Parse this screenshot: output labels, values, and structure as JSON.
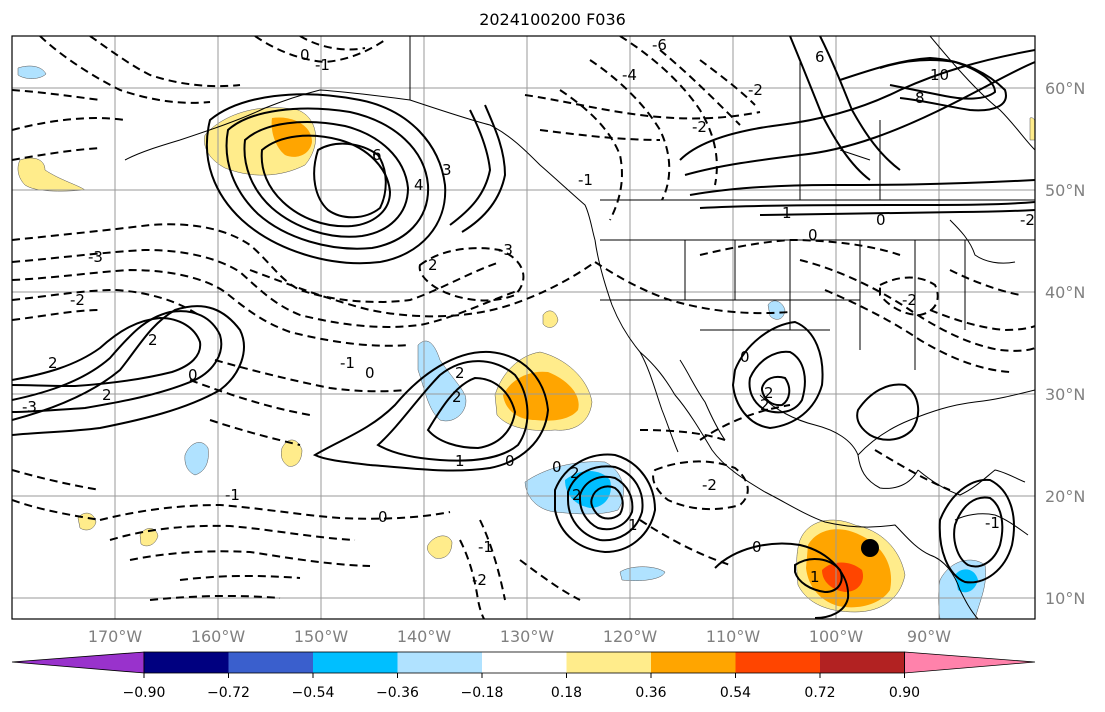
{
  "title": "2024100200 F036",
  "map": {
    "lon_labels": [
      "170°W",
      "160°W",
      "150°W",
      "140°W",
      "130°W",
      "120°W",
      "110°W",
      "100°W",
      "90°W"
    ],
    "lat_labels": [
      "60°N",
      "50°N",
      "40°N",
      "30°N",
      "20°N",
      "10°N"
    ],
    "contour_labels": [
      "6",
      "10",
      "8",
      "4",
      "2",
      "6",
      "2",
      "0",
      "-1",
      "-2",
      "-3",
      "-6",
      "-4",
      "-3",
      "-2",
      "-1",
      "1",
      "-2",
      "0",
      "2",
      "3",
      "2",
      "-3",
      "-2",
      "2",
      "2",
      "-1",
      "0",
      "1",
      "0",
      "2",
      "1",
      "0",
      "-2",
      "-1",
      "-2",
      "2",
      "0",
      "0",
      "2",
      "2",
      "-1",
      "0",
      "0",
      "1",
      "0",
      "-1",
      "-2"
    ],
    "colors": {
      "neg_strong": "#00bfff",
      "neg_weak": "#b0e2ff",
      "pos_weak": "#ffec8b",
      "pos_mid": "#ffa500",
      "pos_strong": "#ff4500"
    }
  },
  "colorbar": {
    "labels": [
      "−0.90",
      "−0.72",
      "−0.54",
      "−0.36",
      "−0.18",
      "0.18",
      "0.36",
      "0.54",
      "0.72",
      "0.90"
    ],
    "colors": [
      "#9932cc",
      "#000080",
      "#3a5fcd",
      "#00bfff",
      "#b0e2ff",
      "#ffffff",
      "#ffec8b",
      "#ffa500",
      "#ff4500",
      "#b22222",
      "#ff82ab"
    ]
  }
}
